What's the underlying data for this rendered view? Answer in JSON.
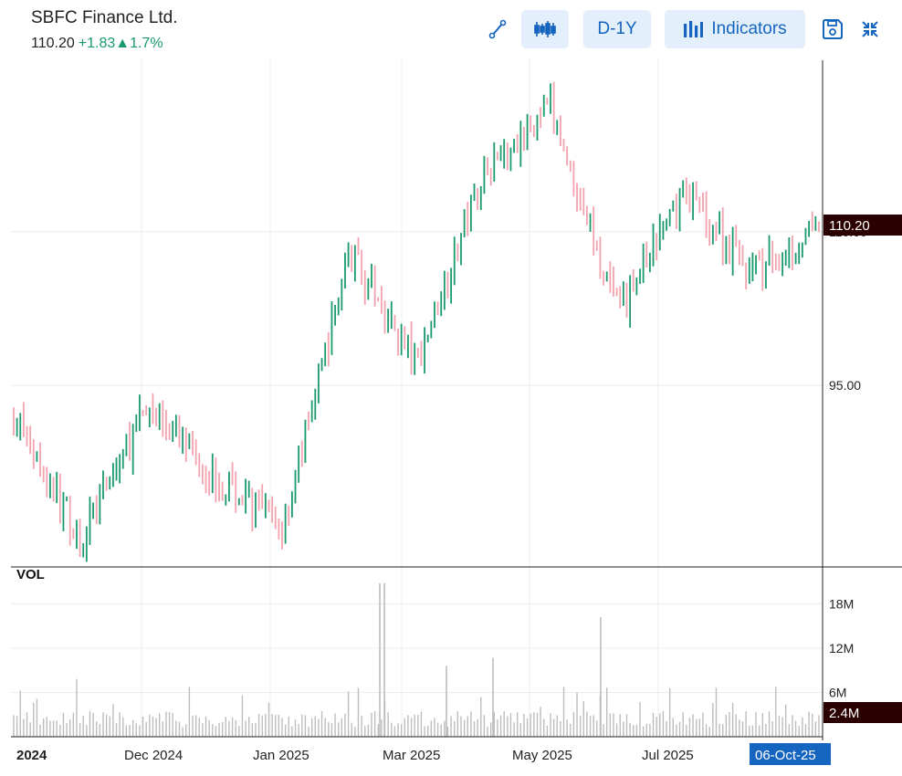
{
  "header": {
    "title": "SBFC Finance Ltd.",
    "last_price": "110.20",
    "change": "+1.83",
    "change_pct": "1.7%",
    "up_color": "#1a9a6c",
    "down_color": "#f3a3ad"
  },
  "toolbar": {
    "draw_icon": "line-tool-icon",
    "candle_icon": "candlestick-icon",
    "period_label": "D-1Y",
    "indicators_label": "Indicators",
    "indicators_icon": "bar-chart-icon",
    "save_icon": "save-icon",
    "collapse_icon": "collapse-icon"
  },
  "chart_data": {
    "type": "candlestick",
    "price_axis": {
      "ticks": [
        "110.00",
        "95.00"
      ],
      "tick_values": [
        110,
        95
      ],
      "range": [
        77.3,
        126.9
      ]
    },
    "last_price_label": "110.20",
    "volume_panel": {
      "label": "VOL",
      "ticks": [
        "18M",
        "12M",
        "6M"
      ],
      "tick_values": [
        18,
        12,
        6
      ],
      "range": [
        0,
        23
      ],
      "last_volume_label": "2.4M",
      "peak_millions": [
        20.8,
        16.2,
        10.7,
        9.6
      ]
    },
    "x_axis": {
      "labels": [
        "2024",
        "Dec 2024",
        "Jan 2025",
        "Mar 2025",
        "May 2025",
        "Jul 2025"
      ],
      "current_date_label": "06-Oct-25"
    },
    "approx_close_path": [
      {
        "date": "Oct 2024",
        "close": 92
      },
      {
        "date": "Nov 2024",
        "close": 80
      },
      {
        "date": "Dec 2024",
        "close": 93
      },
      {
        "date": "Jan 2025",
        "close": 86
      },
      {
        "date": "Feb 2025",
        "close": 81
      },
      {
        "date": "Mar 2025",
        "close": 108
      },
      {
        "date": "Apr 2025",
        "close": 97
      },
      {
        "date": "May 2025",
        "close": 116
      },
      {
        "date": "Jun 2025",
        "close": 122
      },
      {
        "date": "Jul 2025",
        "close": 102
      },
      {
        "date": "Aug 2025",
        "close": 114
      },
      {
        "date": "Sep 2025",
        "close": 106
      },
      {
        "date": "Oct 2025",
        "close": 110.2
      }
    ]
  }
}
